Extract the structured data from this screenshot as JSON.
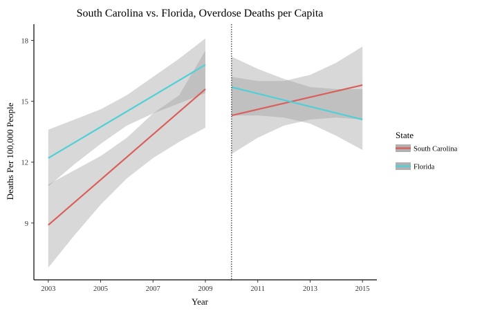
{
  "chart_data": {
    "type": "line",
    "title": "South Carolina vs. Florida, Overdose Deaths per Capita",
    "xlabel": "Year",
    "ylabel": "Deaths Per 100,000 People",
    "xlim": [
      2002.45,
      2015.55
    ],
    "ylim": [
      6.2,
      18.8
    ],
    "x_ticks": [
      2003,
      2005,
      2007,
      2009,
      2011,
      2013,
      2015
    ],
    "x_tick_labels": [
      "2003",
      "2005",
      "2007",
      "2009",
      "2011",
      "2013",
      "2015"
    ],
    "y_ticks": [
      9,
      12,
      15,
      18
    ],
    "y_tick_labels": [
      "9",
      "12",
      "15",
      "18"
    ],
    "grid": false,
    "vline": {
      "x": 2010,
      "style": "dotted"
    },
    "legend": {
      "title": "State",
      "placement": "right"
    },
    "series": [
      {
        "name": "South Carolina",
        "color": "#d95f5a",
        "segments": [
          {
            "x": [
              2003,
              2009
            ],
            "y": [
              8.9,
              15.6
            ],
            "band": {
              "x": [
                2003,
                2004,
                2005,
                2006,
                2007,
                2008,
                2009
              ],
              "lower": [
                6.8,
                8.4,
                9.9,
                11.2,
                12.2,
                13.0,
                13.7
              ],
              "upper": [
                10.9,
                11.6,
                12.3,
                13.2,
                14.4,
                15.3,
                17.5
              ]
            }
          },
          {
            "x": [
              2010,
              2015
            ],
            "y": [
              14.3,
              15.8
            ],
            "band": {
              "x": [
                2010,
                2011,
                2012,
                2013,
                2014,
                2015
              ],
              "lower": [
                12.4,
                13.2,
                13.8,
                14.1,
                14.2,
                14.1
              ],
              "upper": [
                16.2,
                16.0,
                16.0,
                16.3,
                16.9,
                17.7
              ]
            }
          }
        ]
      },
      {
        "name": "Florida",
        "color": "#4fcfd6",
        "segments": [
          {
            "x": [
              2003,
              2009
            ],
            "y": [
              12.2,
              16.8
            ],
            "band": {
              "x": [
                2003,
                2004,
                2005,
                2006,
                2007,
                2008,
                2009
              ],
              "lower": [
                10.8,
                11.9,
                12.9,
                13.8,
                14.4,
                14.9,
                15.4
              ],
              "upper": [
                13.6,
                14.1,
                14.6,
                15.3,
                16.2,
                17.1,
                18.1
              ]
            }
          },
          {
            "x": [
              2010,
              2015
            ],
            "y": [
              15.7,
              14.1
            ],
            "band": {
              "x": [
                2010,
                2011,
                2012,
                2013,
                2014,
                2015
              ],
              "lower": [
                14.3,
                14.3,
                14.2,
                13.9,
                13.3,
                12.6
              ],
              "upper": [
                17.2,
                16.6,
                16.1,
                15.7,
                15.6,
                15.6
              ]
            }
          }
        ]
      }
    ]
  }
}
